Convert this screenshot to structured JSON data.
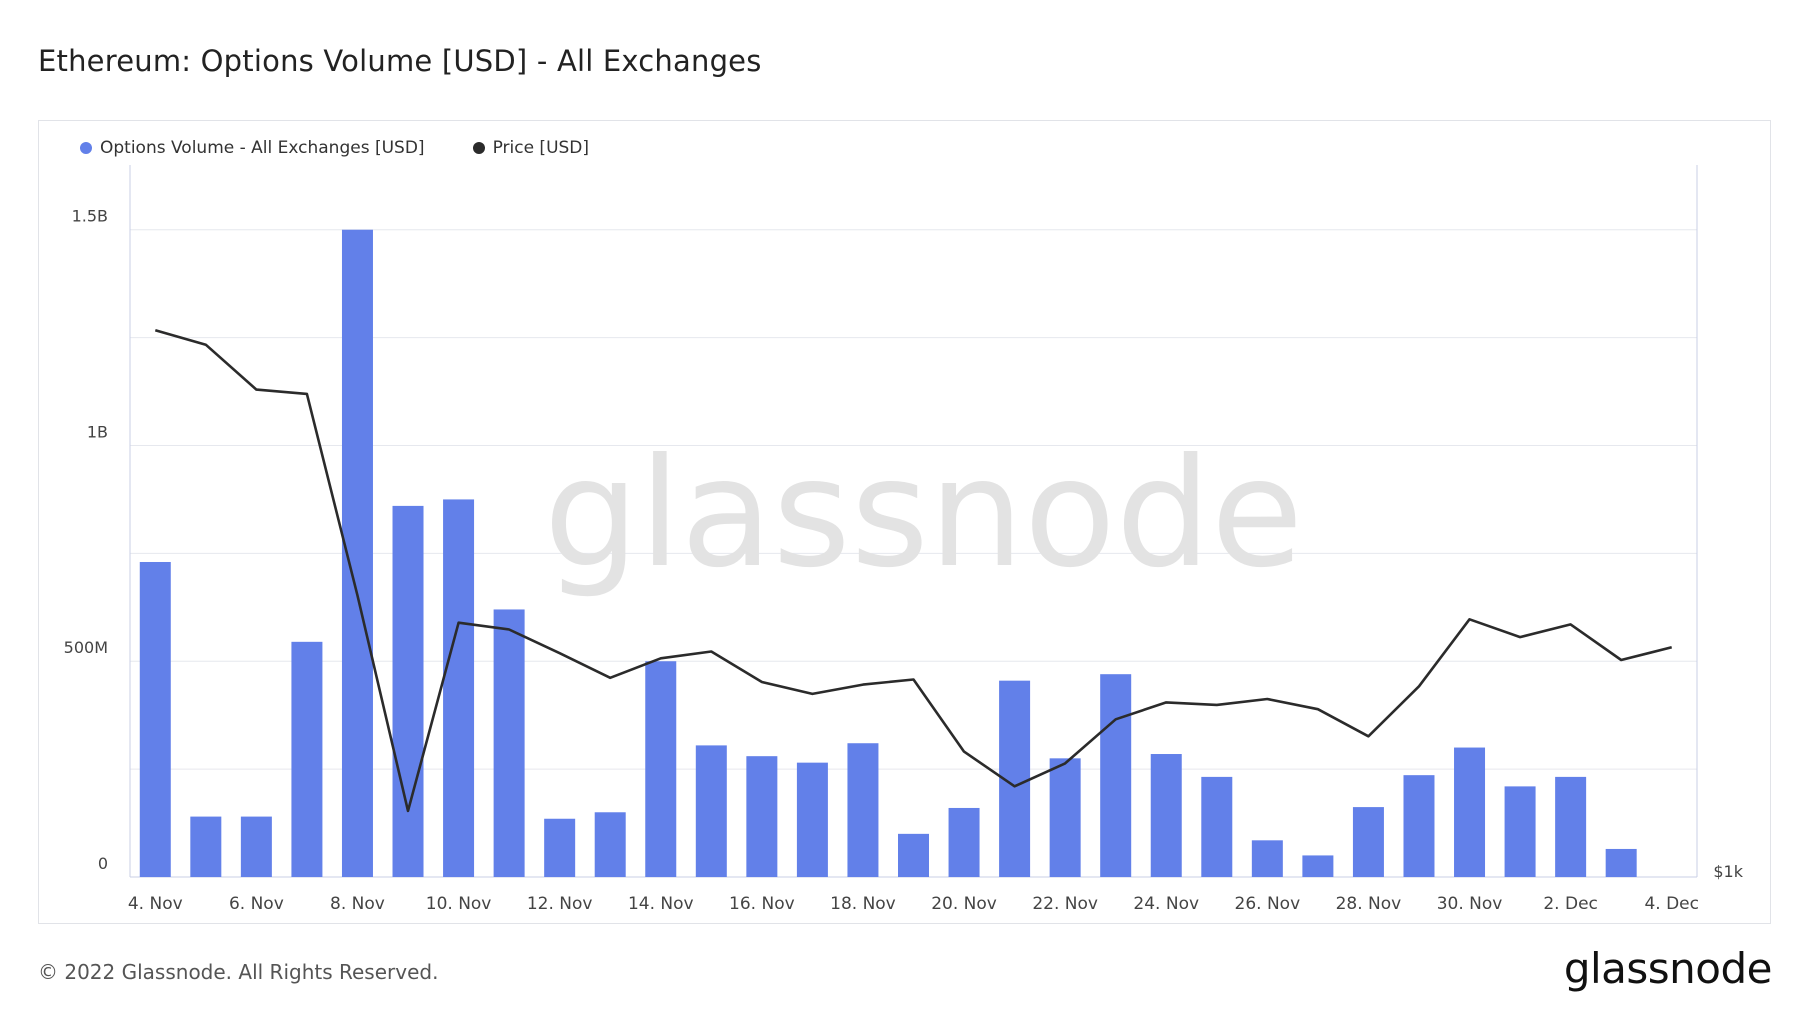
{
  "title": "Ethereum: Options Volume [USD] - All Exchanges",
  "legend": {
    "volume_label": "Options Volume - All Exchanges [USD]",
    "price_label": "Price [USD]"
  },
  "colors": {
    "volume": "#6280e9",
    "price": "#2b2b2b",
    "grid": "#e6e8ee",
    "axis": "#c9cfe6"
  },
  "watermark": "glassnode",
  "copyright": "© 2022 Glassnode. All Rights Reserved.",
  "brand": "glassnode",
  "chart_data": {
    "type": "bar",
    "categories": [
      "4. Nov",
      "5. Nov",
      "6. Nov",
      "7. Nov",
      "8. Nov",
      "9. Nov",
      "10. Nov",
      "11. Nov",
      "12. Nov",
      "13. Nov",
      "14. Nov",
      "15. Nov",
      "16. Nov",
      "17. Nov",
      "18. Nov",
      "19. Nov",
      "20. Nov",
      "21. Nov",
      "22. Nov",
      "23. Nov",
      "24. Nov",
      "25. Nov",
      "26. Nov",
      "27. Nov",
      "28. Nov",
      "29. Nov",
      "30. Nov",
      "1. Dec",
      "2. Dec",
      "3. Dec",
      "4. Dec"
    ],
    "x_tick_labels": [
      "4. Nov",
      "6. Nov",
      "8. Nov",
      "10. Nov",
      "12. Nov",
      "14. Nov",
      "16. Nov",
      "18. Nov",
      "20. Nov",
      "22. Nov",
      "24. Nov",
      "26. Nov",
      "28. Nov",
      "30. Nov",
      "2. Dec",
      "4. Dec"
    ],
    "series": [
      {
        "name": "Options Volume - All Exchanges [USD]",
        "axis": "left",
        "values": [
          730000000,
          140000000,
          140000000,
          545000000,
          1500000000,
          860000000,
          875000000,
          620000000,
          135000000,
          150000000,
          500000000,
          305000000,
          280000000,
          265000000,
          310000000,
          100000000,
          160000000,
          455000000,
          275000000,
          470000000,
          285000000,
          232000000,
          85000000,
          50000000,
          162000000,
          236000000,
          300000000,
          210000000,
          232000000,
          65000000,
          null
        ]
      },
      {
        "name": "Price [USD]",
        "axis": "right",
        "type": "line",
        "values": [
          1645,
          1628,
          1575,
          1570,
          1332,
          1078,
          1300,
          1292,
          1264,
          1235,
          1258,
          1266,
          1230,
          1216,
          1227,
          1233,
          1148,
          1107,
          1134,
          1186,
          1206,
          1203,
          1210,
          1198,
          1166,
          1225,
          1304,
          1283,
          1298,
          1256,
          1271
        ]
      }
    ],
    "y_left": {
      "ticks": [
        "0",
        "500M",
        "1B",
        "1.5B"
      ],
      "tick_values": [
        0,
        500000000,
        1000000000,
        1500000000
      ],
      "range": [
        0,
        1650000000
      ]
    },
    "y_right": {
      "ticks": [
        "$1k"
      ],
      "tick_values": [
        1000
      ],
      "range": [
        1000,
        1840
      ]
    },
    "grid": true,
    "legend_position": "top-left"
  }
}
